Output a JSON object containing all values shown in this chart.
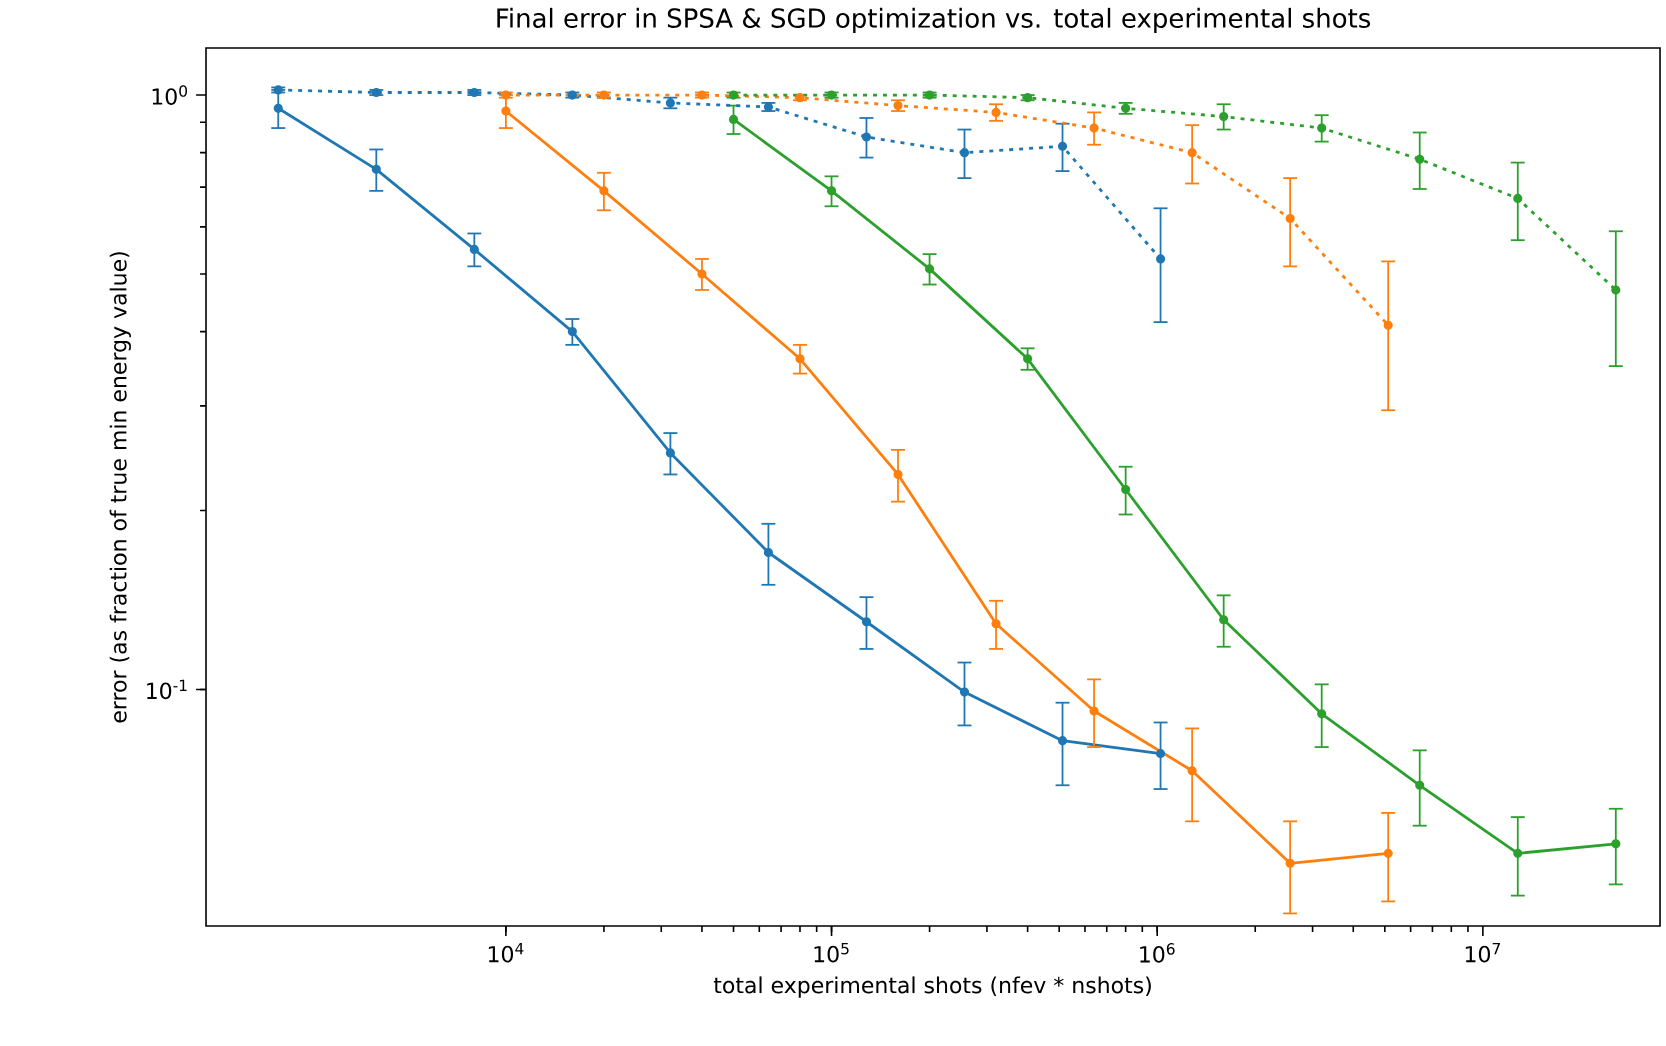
{
  "chart_data": {
    "type": "line",
    "title": "Final error in SPSA & SGD optimization vs. total experimental shots",
    "xlabel": "total experimental shots (nfev * nshots)",
    "ylabel": "error (as fraction of true min energy value)",
    "log": "xy",
    "xlim": [
      1200,
      35000000
    ],
    "ylim": [
      0.04,
      1.2
    ],
    "xticks": [
      {
        "value": 10000,
        "label": "10$^{4}$"
      },
      {
        "value": 100000,
        "label": "10$^{5}$"
      },
      {
        "value": 1000000,
        "label": "10$^{6}$"
      },
      {
        "value": 10000000,
        "label": "10$^{7}$"
      }
    ],
    "yticks": [
      {
        "value": 0.1,
        "label": "10$^{-1}$"
      },
      {
        "value": 1,
        "label": "10$^{0}$"
      }
    ],
    "marker": "circle",
    "series": [
      {
        "color": "#1f77b4",
        "line_style": "solid",
        "x": [
          2000,
          4000,
          8000,
          16000,
          32000,
          64000,
          128000,
          256000,
          512000,
          1024000
        ],
        "values": [
          0.95,
          0.75,
          0.55,
          0.4,
          0.25,
          0.17,
          0.13,
          0.099,
          0.082,
          0.078
        ],
        "errors": [
          0.07,
          0.06,
          0.035,
          0.02,
          0.02,
          0.02,
          0.013,
          0.012,
          0.013,
          0.01
        ]
      },
      {
        "color": "#ff7f0e",
        "line_style": "solid",
        "x": [
          10000,
          20000,
          40000,
          80000,
          160000,
          320000,
          640000,
          1280000,
          2560000,
          5120000
        ],
        "values": [
          0.94,
          0.69,
          0.5,
          0.36,
          0.23,
          0.129,
          0.092,
          0.073,
          0.051,
          0.053
        ],
        "errors": [
          0.06,
          0.05,
          0.03,
          0.02,
          0.023,
          0.012,
          0.012,
          0.013,
          0.009,
          0.009
        ]
      },
      {
        "color": "#2ca02c",
        "line_style": "solid",
        "x": [
          50000,
          100000,
          200000,
          400000,
          800000,
          1600000,
          3200000,
          6400000,
          12800000,
          25600000
        ],
        "values": [
          0.91,
          0.69,
          0.51,
          0.36,
          0.217,
          0.131,
          0.091,
          0.069,
          0.053,
          0.055
        ],
        "errors": [
          0.05,
          0.04,
          0.03,
          0.015,
          0.02,
          0.013,
          0.011,
          0.01,
          0.008,
          0.008
        ]
      },
      {
        "color": "#1f77b4",
        "line_style": "dotted",
        "x": [
          2000,
          4000,
          8000,
          16000,
          32000,
          64000,
          128000,
          256000,
          512000,
          1024000
        ],
        "values": [
          1.02,
          1.01,
          1.01,
          1.0,
          0.97,
          0.955,
          0.85,
          0.8,
          0.82,
          0.53
        ],
        "errors": [
          0.01,
          0.01,
          0.01,
          0.01,
          0.02,
          0.015,
          0.065,
          0.075,
          0.075,
          0.115
        ]
      },
      {
        "color": "#ff7f0e",
        "line_style": "dotted",
        "x": [
          10000,
          20000,
          40000,
          80000,
          160000,
          320000,
          640000,
          1280000,
          2560000,
          5120000
        ],
        "values": [
          1.0,
          1.0,
          1.0,
          0.99,
          0.96,
          0.935,
          0.88,
          0.8,
          0.62,
          0.41
        ],
        "errors": [
          0.01,
          0.01,
          0.01,
          0.01,
          0.02,
          0.03,
          0.055,
          0.09,
          0.105,
          0.115
        ]
      },
      {
        "color": "#2ca02c",
        "line_style": "dotted",
        "x": [
          50000,
          100000,
          200000,
          400000,
          800000,
          1600000,
          3200000,
          6400000,
          12800000,
          25600000
        ],
        "values": [
          1.0,
          1.0,
          1.0,
          0.99,
          0.95,
          0.92,
          0.88,
          0.78,
          0.67,
          0.47
        ],
        "errors": [
          0.01,
          0.01,
          0.01,
          0.01,
          0.02,
          0.045,
          0.045,
          0.085,
          0.1,
          0.12
        ]
      }
    ]
  }
}
